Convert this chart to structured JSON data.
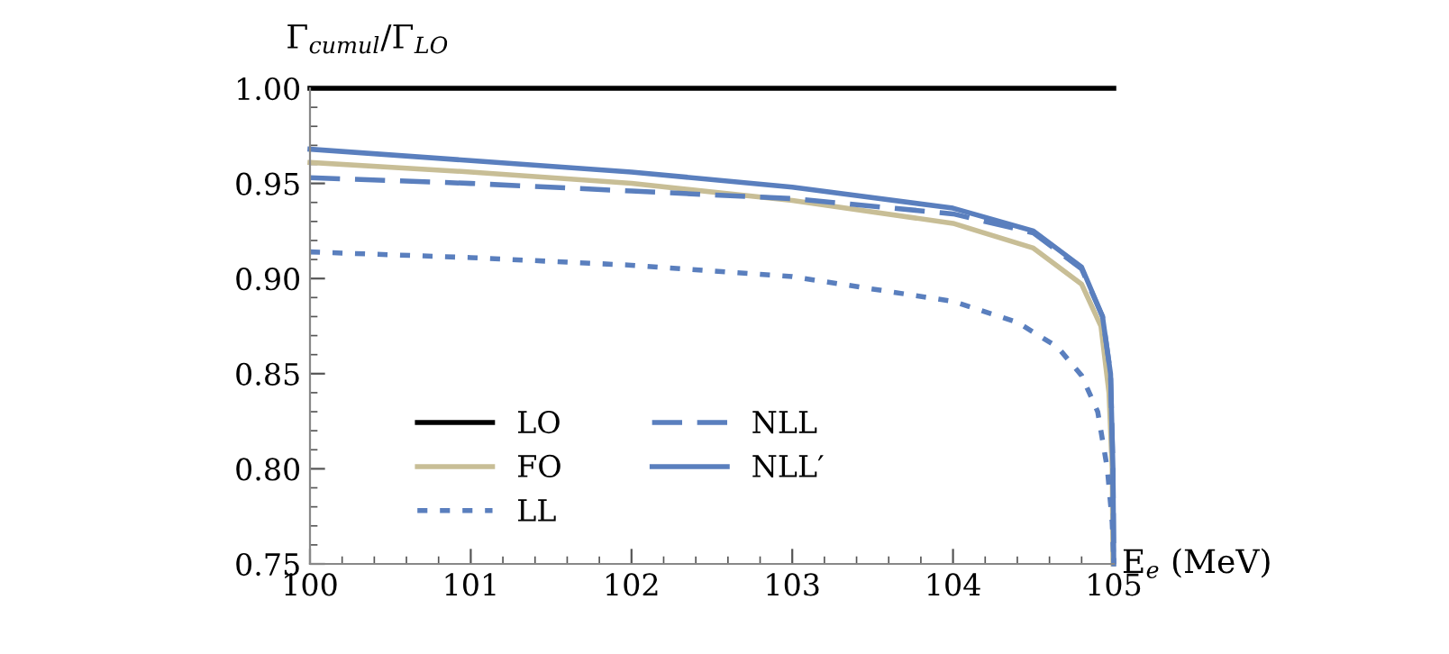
{
  "chart_data": {
    "type": "line",
    "xlabel": "E$_{e}$ (MeV)",
    "ylabel": "Γ$_{cumul}$/Γ$_{LO}$",
    "xlim": [
      100,
      105
    ],
    "ylim": [
      0.75,
      1.0
    ],
    "xticks": [
      100,
      101,
      102,
      103,
      104,
      105
    ],
    "yticks": [
      {
        "value": 0.75,
        "label": "0.75"
      },
      {
        "value": 0.8,
        "label": "0.80"
      },
      {
        "value": 0.85,
        "label": "0.85"
      },
      {
        "value": 0.9,
        "label": "0.90"
      },
      {
        "value": 0.95,
        "label": "0.95"
      },
      {
        "value": 1.0,
        "label": "1.00"
      }
    ],
    "grid": false,
    "legend": "bottom left",
    "series": [
      {
        "name": "LO",
        "color": "#000000",
        "line_style": "solid",
        "x": [
          100,
          105
        ],
        "values": [
          1.0,
          1.0
        ]
      },
      {
        "name": "FO",
        "color": "#c8be96",
        "line_style": "solid",
        "x": [
          100,
          101,
          102,
          103,
          104,
          104.5,
          104.8,
          104.92,
          104.97,
          104.99,
          104.995
        ],
        "values": [
          0.961,
          0.956,
          0.95,
          0.941,
          0.929,
          0.916,
          0.897,
          0.875,
          0.84,
          0.8,
          0.75
        ]
      },
      {
        "name": "LL",
        "color": "#5a7fbe",
        "line_style": "dotted",
        "x": [
          100,
          101,
          102,
          103,
          104,
          104.4,
          104.65,
          104.8,
          104.9,
          104.96,
          104.99,
          105
        ],
        "values": [
          0.914,
          0.911,
          0.907,
          0.901,
          0.888,
          0.877,
          0.864,
          0.849,
          0.83,
          0.8,
          0.772,
          0.75
        ]
      },
      {
        "name": "NLL",
        "color": "#5a7fbe",
        "line_style": "dashed",
        "x": [
          100,
          101,
          102,
          103,
          104,
          104.5,
          104.8,
          104.93,
          104.98,
          104.995,
          105
        ],
        "values": [
          0.953,
          0.95,
          0.946,
          0.942,
          0.934,
          0.924,
          0.905,
          0.88,
          0.85,
          0.8,
          0.75
        ]
      },
      {
        "name": "NLL′",
        "color": "#5a7fbe",
        "line_style": "solid",
        "x": [
          100,
          101,
          102,
          103,
          104,
          104.5,
          104.8,
          104.93,
          104.98,
          104.995,
          105
        ],
        "values": [
          0.968,
          0.962,
          0.956,
          0.948,
          0.937,
          0.925,
          0.906,
          0.88,
          0.85,
          0.8,
          0.75
        ]
      }
    ]
  }
}
